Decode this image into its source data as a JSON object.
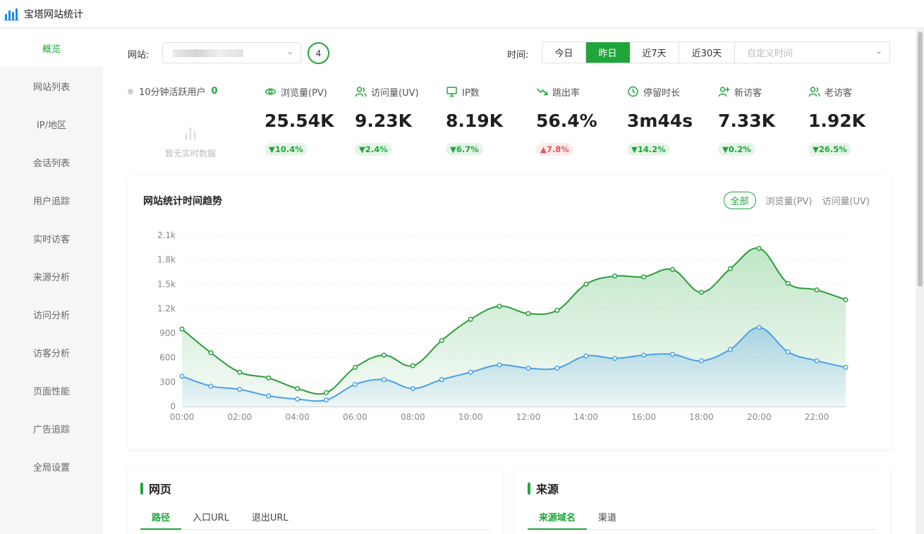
{
  "app": {
    "title": "宝塔网站统计",
    "accent": "#20a53a",
    "pv_color": "#2a9d3a",
    "uv_color": "#4a9fe6"
  },
  "sidebar": {
    "items": [
      {
        "label": "概览",
        "active": true
      },
      {
        "label": "网站列表"
      },
      {
        "label": "IP/地区"
      },
      {
        "label": "会话列表"
      },
      {
        "label": "用户追踪"
      },
      {
        "label": "实时访客"
      },
      {
        "label": "来源分析"
      },
      {
        "label": "访问分析"
      },
      {
        "label": "访客分析"
      },
      {
        "label": "页面性能"
      },
      {
        "label": "广告追踪"
      },
      {
        "label": "全局设置"
      }
    ]
  },
  "toolbar": {
    "site_label": "网站:",
    "site_count": "4",
    "time_label": "时间:",
    "time_options": [
      "今日",
      "昨日",
      "近7天",
      "近30天"
    ],
    "time_active": "昨日",
    "custom_placeholder": "自定义时间"
  },
  "realtime": {
    "label": "10分钟活跃用户",
    "count": "0",
    "empty_text": "暂无实时数据"
  },
  "metrics": [
    {
      "icon": "eye-icon",
      "label": "浏览量(PV)",
      "value": "25.54K",
      "change": "▼10.4%",
      "trend": "down"
    },
    {
      "icon": "users-icon",
      "label": "访问量(UV)",
      "value": "9.23K",
      "change": "▼2.4%",
      "trend": "down"
    },
    {
      "icon": "monitor-icon",
      "label": "IP数",
      "value": "8.19K",
      "change": "▼6.7%",
      "trend": "down"
    },
    {
      "icon": "trend-down-icon",
      "label": "跳出率",
      "value": "56.4%",
      "change": "▲7.8%",
      "trend": "up"
    },
    {
      "icon": "clock-icon",
      "label": "停留时长",
      "value": "3m44s",
      "change": "▼14.2%",
      "trend": "down"
    },
    {
      "icon": "user-plus-icon",
      "label": "新访客",
      "value": "7.33K",
      "change": "▼0.2%",
      "trend": "down"
    },
    {
      "icon": "users-icon",
      "label": "老访客",
      "value": "1.92K",
      "change": "▼26.5%",
      "trend": "down"
    }
  ],
  "chart_card": {
    "title": "网站统计时间趋势",
    "tabs": [
      "全部",
      "浏览量(PV)",
      "访问量(UV)"
    ],
    "active_tab": "全部"
  },
  "chart_data": {
    "type": "area",
    "x": [
      "00:00",
      "01:00",
      "02:00",
      "03:00",
      "04:00",
      "05:00",
      "06:00",
      "07:00",
      "08:00",
      "09:00",
      "10:00",
      "11:00",
      "12:00",
      "13:00",
      "14:00",
      "15:00",
      "16:00",
      "17:00",
      "18:00",
      "19:00",
      "20:00",
      "21:00",
      "22:00",
      "23:00"
    ],
    "x_tick_labels": [
      "00:00",
      "02:00",
      "04:00",
      "06:00",
      "08:00",
      "10:00",
      "12:00",
      "14:00",
      "16:00",
      "18:00",
      "20:00",
      "22:00"
    ],
    "y_ticks": [
      "0",
      "300",
      "600",
      "900",
      "1.2k",
      "1.5k",
      "1.8k",
      "2.1k"
    ],
    "ylim": [
      0,
      2100
    ],
    "series": [
      {
        "values": [
          950,
          660,
          420,
          350,
          220,
          170,
          480,
          630,
          500,
          810,
          1070,
          1230,
          1140,
          1180,
          1500,
          1600,
          1590,
          1680,
          1400,
          1690,
          1940,
          1510,
          1430,
          1310
        ]
      },
      {
        "values": [
          370,
          250,
          210,
          130,
          90,
          80,
          270,
          330,
          220,
          330,
          420,
          510,
          470,
          470,
          620,
          590,
          630,
          640,
          560,
          700,
          970,
          670,
          560,
          480
        ]
      }
    ],
    "grid": true,
    "legend": "none"
  },
  "bottom_cards": [
    {
      "title": "网页",
      "tabs": [
        "路径",
        "入口URL",
        "退出URL"
      ],
      "active_tab": "路径"
    },
    {
      "title": "来源",
      "tabs": [
        "来源域名",
        "渠道"
      ],
      "active_tab": "来源域名"
    }
  ]
}
